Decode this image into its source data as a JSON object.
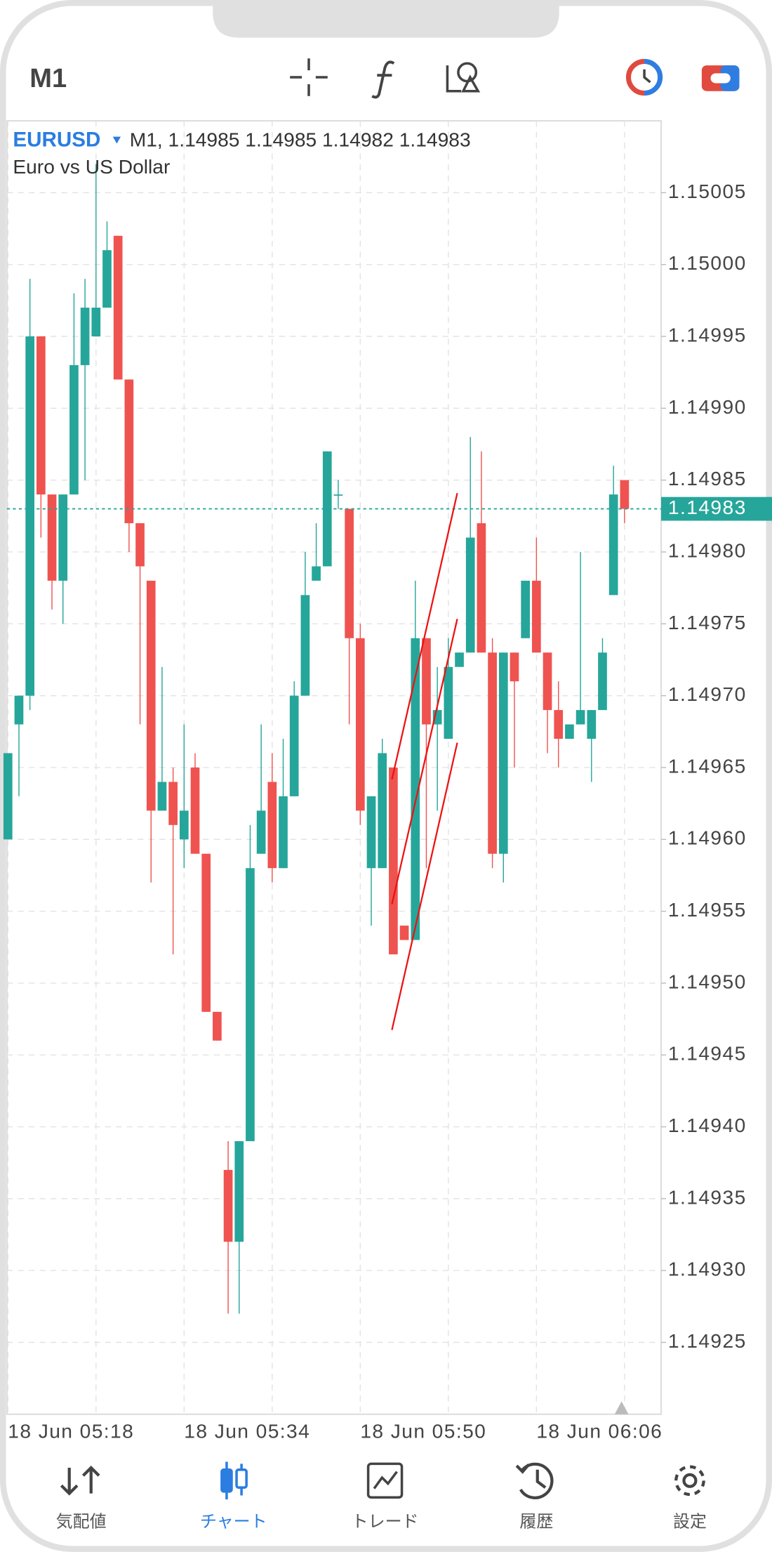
{
  "timeframe": "M1",
  "chart_data": {
    "type": "candlestick",
    "symbol": "EURUSD",
    "ohlc_text": "M1, 1.14985 1.14985 1.14982 1.14983",
    "description": "Euro vs US Dollar",
    "categories": [
      "18 Jun 05:18",
      null,
      null,
      null,
      null,
      null,
      null,
      null,
      null,
      null,
      null,
      null,
      null,
      null,
      null,
      null,
      "18 Jun 05:34",
      null,
      null,
      null,
      null,
      null,
      null,
      null,
      null,
      null,
      null,
      null,
      null,
      null,
      null,
      null,
      "18 Jun 05:50",
      null,
      null,
      null,
      null,
      null,
      null,
      null,
      null,
      null,
      null,
      null,
      null,
      null,
      null,
      null,
      "18 Jun 06:06",
      null,
      null,
      null,
      null,
      null,
      null,
      null,
      null
    ],
    "open": [
      1.1496,
      1.14968,
      1.1497,
      1.14995,
      1.14984,
      1.14978,
      1.14984,
      1.14993,
      1.14995,
      1.14997,
      1.15002,
      1.14992,
      1.14982,
      1.14978,
      1.14962,
      1.14964,
      1.1496,
      1.14965,
      1.14959,
      1.14948,
      1.14937,
      1.14932,
      1.14939,
      1.14959,
      1.14964,
      1.14958,
      1.14963,
      1.1497,
      1.14978,
      1.14979,
      1.14984,
      1.14983,
      1.14974,
      1.14958,
      1.14958,
      1.14965,
      1.14954,
      1.14953,
      1.14974,
      1.14968,
      1.14967,
      1.14972,
      1.14973,
      1.14982,
      1.14973,
      1.14959,
      1.14973,
      1.14974,
      1.14978,
      1.14973,
      1.14969,
      1.14967,
      1.14968,
      1.14967,
      1.14969,
      1.14977,
      1.14985
    ],
    "high": [
      1.14966,
      1.1497,
      1.14999,
      1.14995,
      1.14984,
      1.14984,
      1.14998,
      1.14999,
      1.15007,
      1.15003,
      1.15002,
      1.14992,
      1.14982,
      1.14978,
      1.14972,
      1.14965,
      1.14968,
      1.14966,
      1.14959,
      1.14948,
      1.14939,
      1.14939,
      1.14961,
      1.14968,
      1.14966,
      1.14967,
      1.14971,
      1.1498,
      1.14982,
      1.14987,
      1.14985,
      1.14983,
      1.14975,
      1.14963,
      1.14967,
      1.14965,
      1.14954,
      1.14978,
      1.14974,
      1.14972,
      1.14974,
      1.14973,
      1.14988,
      1.14987,
      1.14974,
      1.14973,
      1.14973,
      1.14978,
      1.14981,
      1.14973,
      1.14971,
      1.14968,
      1.1498,
      1.14969,
      1.14974,
      1.14986,
      1.14985
    ],
    "low": [
      1.1496,
      1.14963,
      1.14969,
      1.14981,
      1.14976,
      1.14975,
      1.14984,
      1.14985,
      1.14995,
      1.14997,
      1.14992,
      1.1498,
      1.14968,
      1.14957,
      1.14962,
      1.14952,
      1.14958,
      1.14959,
      1.14948,
      1.14946,
      1.14927,
      1.14927,
      1.14939,
      1.14959,
      1.14957,
      1.14958,
      1.14963,
      1.1497,
      1.14978,
      1.14979,
      1.14983,
      1.14968,
      1.14961,
      1.14954,
      1.14958,
      1.14952,
      1.14953,
      1.14953,
      1.14958,
      1.14962,
      1.14967,
      1.14972,
      1.14973,
      1.14973,
      1.14958,
      1.14957,
      1.14965,
      1.14974,
      1.14973,
      1.14966,
      1.14965,
      1.14967,
      1.14968,
      1.14964,
      1.14969,
      1.14977,
      1.14982
    ],
    "close": [
      1.14966,
      1.1497,
      1.14995,
      1.14984,
      1.14978,
      1.14984,
      1.14993,
      1.14997,
      1.14997,
      1.15001,
      1.14992,
      1.14982,
      1.14979,
      1.14962,
      1.14964,
      1.14961,
      1.14962,
      1.14959,
      1.14948,
      1.14946,
      1.14932,
      1.14939,
      1.14958,
      1.14962,
      1.14958,
      1.14963,
      1.1497,
      1.14977,
      1.14979,
      1.14987,
      1.14984,
      1.14974,
      1.14962,
      1.14963,
      1.14966,
      1.14952,
      1.14953,
      1.14974,
      1.14968,
      1.14969,
      1.14972,
      1.14973,
      1.14981,
      1.14973,
      1.14959,
      1.14973,
      1.14971,
      1.14978,
      1.14973,
      1.14969,
      1.14967,
      1.14968,
      1.14969,
      1.14969,
      1.14973,
      1.14984,
      1.14983
    ],
    "up_color": "#26a69a",
    "down_color": "#ef5350",
    "current_price": 1.14983,
    "ylim": [
      1.1492,
      1.1501
    ],
    "yticks": [
      1.15005,
      {
        "value": 1.15,
        "label": "1.15000"
      },
      1.14995,
      {
        "value": 1.1499,
        "label": "1.14990"
      },
      1.14985,
      {
        "value": 1.1498,
        "label": "1.14980"
      },
      1.14975,
      {
        "value": 1.1497,
        "label": "1.14970"
      },
      1.14965,
      {
        "value": 1.1496,
        "label": "1.14960"
      },
      1.14955,
      {
        "value": 1.1495,
        "label": "1.14950"
      },
      1.14945,
      {
        "value": 1.1494,
        "label": "1.14940"
      },
      1.14935,
      {
        "value": 1.1493,
        "label": "1.14930"
      },
      1.14925
    ],
    "grid": true
  },
  "nav": [
    "気配値",
    "チャート",
    "トレード",
    "履歴",
    "設定"
  ]
}
